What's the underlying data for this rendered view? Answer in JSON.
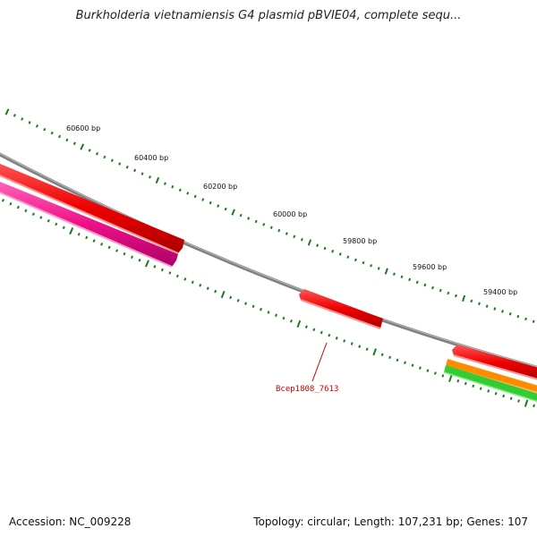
{
  "title": "Burkholderia vietnamiensis G4 plasmid pBVIE04, complete sequ...",
  "footer": {
    "accession": "Accession: NC_009228",
    "summary": "Topology: circular; Length: 107,231 bp; Genes: 107"
  },
  "scale_labels": [
    "60600 bp",
    "60400 bp",
    "60200 bp",
    "60000 bp",
    "59800 bp",
    "59600 bp",
    "59400 bp"
  ],
  "gene_callout": "Bcep1808_7613",
  "colors": {
    "backbone": "#808080",
    "tick": "#1e7a1e",
    "gene_red": "#ee0000",
    "gene_pink": "#ee1188",
    "gene_orange": "#ff8c00",
    "gene_green": "#33cc33",
    "label_red": "#cc0000"
  }
}
